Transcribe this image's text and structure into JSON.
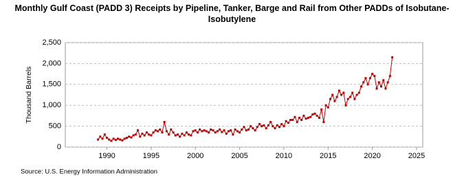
{
  "chart_data": {
    "type": "line",
    "title": "Monthly Gulf Coast (PADD 3) Receipts by Pipeline, Tanker, Barge and Rail from Other PADDs of Isobutane-Isobutylene",
    "y_label": "Thousand Barrels",
    "source": "Source: U.S. Energy Information Administration",
    "xlim": [
      1985.3,
      2025.7
    ],
    "xticks": [
      1990,
      1995,
      2000,
      2005,
      2010,
      2015,
      2020,
      2025
    ],
    "ylim": [
      0,
      2500
    ],
    "yticks": [
      0,
      500,
      {
        "value": 1000,
        "label": "1,000"
      },
      {
        "value": 1500,
        "label": "1,500"
      },
      {
        "value": 2000,
        "label": "2,000"
      },
      {
        "value": 2500,
        "label": "2,500"
      }
    ],
    "grid": true,
    "x": [
      1989,
      1989.25,
      1989.5,
      1989.75,
      1990,
      1990.25,
      1990.5,
      1990.75,
      1991,
      1991.25,
      1991.5,
      1991.75,
      1992,
      1992.25,
      1992.5,
      1992.75,
      1993,
      1993.25,
      1993.5,
      1993.75,
      1994,
      1994.25,
      1994.5,
      1994.75,
      1995,
      1995.25,
      1995.5,
      1995.75,
      1996,
      1996.25,
      1996.5,
      1996.75,
      1997,
      1997.25,
      1997.5,
      1997.75,
      1998,
      1998.25,
      1998.5,
      1998.75,
      1999,
      1999.25,
      1999.5,
      1999.75,
      2000,
      2000.25,
      2000.5,
      2000.75,
      2001,
      2001.25,
      2001.5,
      2001.75,
      2002,
      2002.25,
      2002.5,
      2002.75,
      2003,
      2003.25,
      2003.5,
      2003.75,
      2004,
      2004.25,
      2004.5,
      2004.75,
      2005,
      2005.25,
      2005.5,
      2005.75,
      2006,
      2006.25,
      2006.5,
      2006.75,
      2007,
      2007.25,
      2007.5,
      2007.75,
      2008,
      2008.25,
      2008.5,
      2008.75,
      2009,
      2009.25,
      2009.5,
      2009.75,
      2010,
      2010.25,
      2010.5,
      2010.75,
      2011,
      2011.25,
      2011.5,
      2011.75,
      2012,
      2012.25,
      2012.5,
      2012.75,
      2013,
      2013.25,
      2013.5,
      2013.75,
      2014,
      2014.25,
      2014.5,
      2014.75,
      2015,
      2015.25,
      2015.5,
      2015.75,
      2016,
      2016.25,
      2016.5,
      2016.75,
      2017,
      2017.25,
      2017.5,
      2017.75,
      2018,
      2018.25,
      2018.5,
      2018.75,
      2019,
      2019.25,
      2019.5,
      2019.75,
      2020,
      2020.25,
      2020.5,
      2020.75,
      2021,
      2021.25,
      2021.5,
      2021.75,
      2022,
      2022.25
    ],
    "series": [
      {
        "color": "#c00000",
        "values": [
          180,
          250,
          200,
          300,
          220,
          180,
          150,
          200,
          170,
          200,
          180,
          160,
          200,
          220,
          250,
          230,
          280,
          300,
          400,
          250,
          320,
          280,
          350,
          300,
          280,
          350,
          400,
          380,
          420,
          350,
          600,
          380,
          300,
          420,
          350,
          280,
          300,
          250,
          320,
          280,
          350,
          300,
          280,
          380,
          400,
          350,
          420,
          380,
          400,
          380,
          350,
          420,
          400,
          350,
          380,
          420,
          360,
          400,
          320,
          380,
          400,
          300,
          420,
          380,
          350,
          420,
          480,
          400,
          420,
          500,
          450,
          400,
          480,
          550,
          500,
          520,
          450,
          520,
          600,
          500,
          450,
          520,
          480,
          550,
          500,
          620,
          580,
          650,
          650,
          720,
          600,
          700,
          650,
          750,
          680,
          700,
          720,
          780,
          800,
          750,
          700,
          900,
          600,
          1000,
          950,
          1150,
          1250,
          1100,
          1200,
          1350,
          1250,
          1300,
          1000,
          1150,
          1200,
          1300,
          1150,
          1250,
          1300,
          1450,
          1550,
          1650,
          1500,
          1650,
          1750,
          1700,
          1400,
          1550,
          1450,
          1600,
          1400,
          1550,
          1700,
          2150
        ]
      }
    ]
  }
}
